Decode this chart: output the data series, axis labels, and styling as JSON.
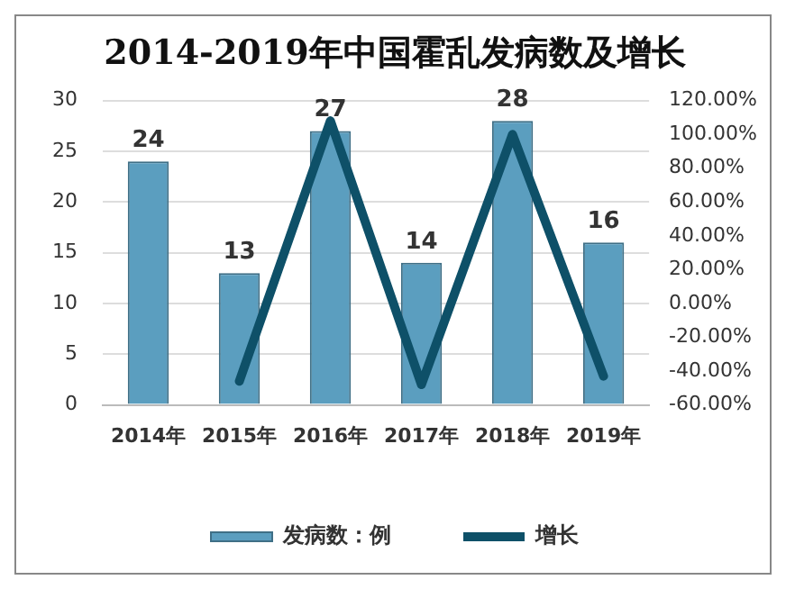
{
  "chart_data": {
    "type": "bar",
    "title": "2014-2019年中国霍乱发病数及增长",
    "categories": [
      "2014年",
      "2015年",
      "2016年",
      "2017年",
      "2018年",
      "2019年"
    ],
    "series": [
      {
        "name": "发病数：例",
        "color": "#5b9ebf",
        "values": [
          24,
          13,
          27,
          14,
          28,
          16
        ],
        "value_labels": [
          "24",
          "13",
          "27",
          "14",
          "28",
          "16"
        ]
      },
      {
        "name": "增长",
        "type": "line",
        "axis": "y2",
        "color": "#0e5068",
        "values": [
          null,
          -46,
          108,
          -48,
          100,
          -43
        ]
      }
    ],
    "ylim": [
      0,
      30
    ],
    "yticks": [
      0,
      5,
      10,
      15,
      20,
      25,
      30
    ],
    "y2lim": [
      -60,
      120
    ],
    "y2ticks": [
      {
        "value": -60,
        "label": "-60.00%"
      },
      {
        "value": -40,
        "label": "-40.00%"
      },
      {
        "value": -20,
        "label": "-20.00%"
      },
      {
        "value": 0,
        "label": "0.00%"
      },
      {
        "value": 20,
        "label": "20.00%"
      },
      {
        "value": 40,
        "label": "40.00%"
      },
      {
        "value": 60,
        "label": "60.00%"
      },
      {
        "value": 80,
        "label": "80.00%"
      },
      {
        "value": 100,
        "label": "100.00%"
      },
      {
        "value": 120,
        "label": "120.00%"
      }
    ],
    "grid": "y",
    "legend": "bottom"
  }
}
